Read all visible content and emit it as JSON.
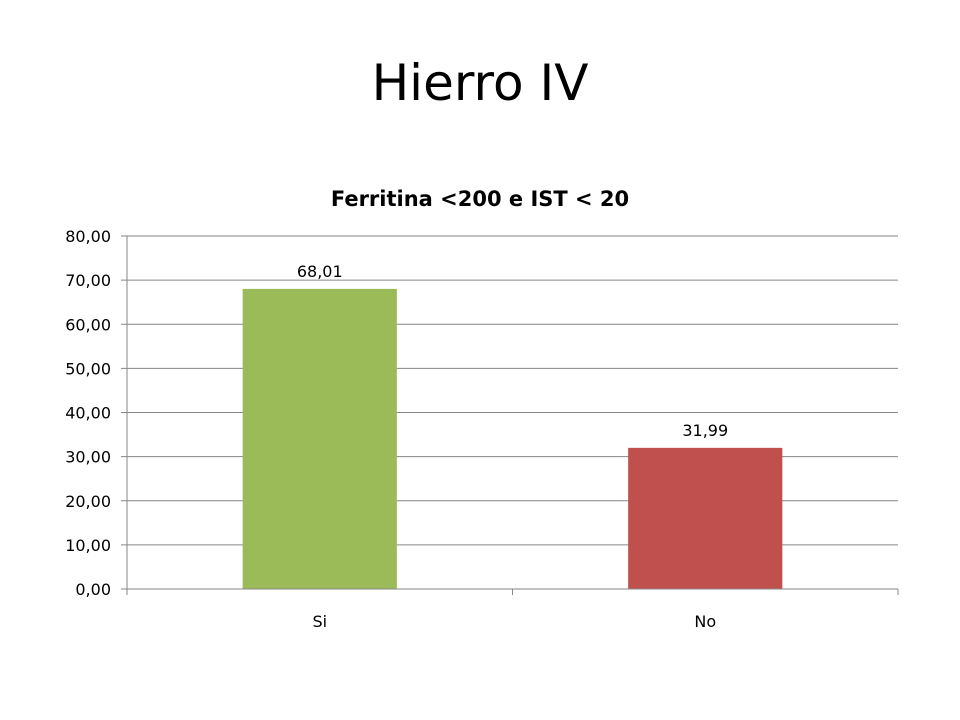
{
  "slide": {
    "title": "Hierro IV"
  },
  "chart_data": {
    "type": "bar",
    "title": "Ferritina <200 e IST < 20",
    "categories": [
      "Si",
      "No"
    ],
    "values": [
      68.01,
      31.99
    ],
    "value_labels": [
      "68,01",
      "31,99"
    ],
    "bar_colors": [
      "#9BBB59",
      "#C0504D"
    ],
    "ylim": [
      0,
      80
    ],
    "yticks": [
      0,
      10,
      20,
      30,
      40,
      50,
      60,
      70,
      80
    ],
    "ytick_labels": [
      "0,00",
      "10,00",
      "20,00",
      "30,00",
      "40,00",
      "50,00",
      "60,00",
      "70,00",
      "80,00"
    ],
    "grid": true,
    "legend": "none"
  }
}
